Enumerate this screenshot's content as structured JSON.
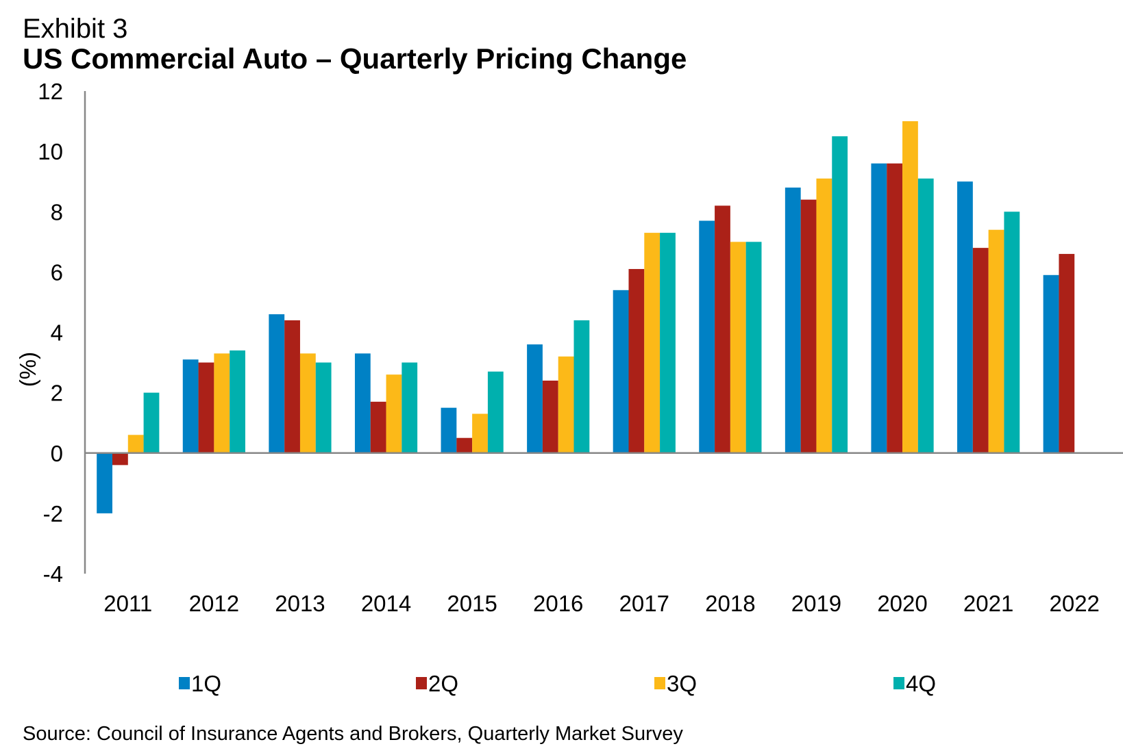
{
  "chart_data": {
    "type": "bar",
    "exhibit": "Exhibit 3",
    "title": "US Commercial Auto – Quarterly Pricing Change",
    "xlabel": "",
    "ylabel": "(%)",
    "ylim": [
      -4,
      12
    ],
    "yticks": [
      -4,
      -2,
      0,
      2,
      4,
      6,
      8,
      10,
      12
    ],
    "ytick_labels": [
      "-4",
      "-2",
      "0",
      "2",
      "4",
      "6",
      "8",
      "10",
      "12"
    ],
    "grid": false,
    "legend_position": "bottom",
    "categories": [
      "2011",
      "2012",
      "2013",
      "2014",
      "2015",
      "2016",
      "2017",
      "2018",
      "2019",
      "2020",
      "2021",
      "2022"
    ],
    "series": [
      {
        "name": "1Q",
        "color": "#0081C5",
        "values": [
          -2.0,
          3.1,
          4.6,
          3.3,
          1.5,
          3.6,
          5.4,
          7.7,
          8.8,
          9.6,
          9.0,
          5.9
        ]
      },
      {
        "name": "2Q",
        "color": "#AB2118",
        "values": [
          -0.4,
          3.0,
          4.4,
          1.7,
          0.5,
          2.4,
          6.1,
          8.2,
          8.4,
          9.6,
          6.8,
          6.6
        ]
      },
      {
        "name": "3Q",
        "color": "#FCB918",
        "values": [
          0.6,
          3.3,
          3.3,
          2.6,
          1.3,
          3.2,
          7.3,
          7.0,
          9.1,
          11.0,
          7.4,
          null
        ]
      },
      {
        "name": "4Q",
        "color": "#00B0AE",
        "values": [
          2.0,
          3.4,
          3.0,
          3.0,
          2.7,
          4.4,
          7.3,
          7.0,
          10.5,
          9.1,
          8.0,
          null
        ]
      }
    ],
    "source": "Source: Council of Insurance Agents and Brokers, Quarterly Market Survey"
  }
}
